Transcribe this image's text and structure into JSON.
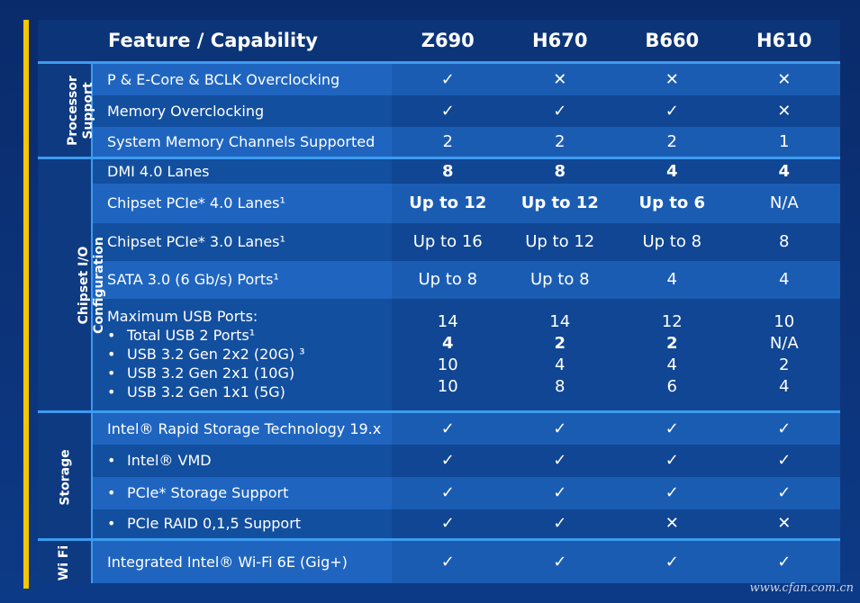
{
  "header": {
    "feature_label": "Feature / Capability",
    "chipsets": [
      "Z690",
      "H670",
      "B660",
      "H610"
    ]
  },
  "icons": {
    "check": "check-icon",
    "cross": "cross-icon"
  },
  "colors": {
    "accent_bar": "#f7c600",
    "divider": "#3d9bf0",
    "background": "#0b2e6f"
  },
  "categories": {
    "processor": "Processor Support",
    "chipset_io": "Chipset I/O Configuration",
    "storage": "Storage",
    "wifi": "Wi Fi"
  },
  "rows": {
    "r0": {
      "label": "P & E-Core & BCLK Overclocking",
      "values": [
        "✓",
        "✕",
        "✕",
        "✕"
      ]
    },
    "r1": {
      "label": "Memory Overclocking",
      "values": [
        "✓",
        "✓",
        "✓",
        "✕"
      ]
    },
    "r2": {
      "label": "System Memory Channels Supported",
      "values": [
        "2",
        "2",
        "2",
        "1"
      ]
    },
    "r3": {
      "label": "DMI 4.0 Lanes",
      "values": [
        "8",
        "8",
        "4",
        "4"
      ]
    },
    "r4": {
      "label": "Chipset PCIe* 4.0 Lanes¹",
      "values": [
        "Up to 12",
        "Up to 12",
        "Up to 6",
        "N/A"
      ]
    },
    "r5": {
      "label": "Chipset PCIe* 3.0 Lanes¹",
      "values": [
        "Up to 16",
        "Up to 12",
        "Up to 8",
        "8"
      ]
    },
    "r6": {
      "label": "SATA 3.0 (6 Gb/s) Ports¹",
      "values": [
        "Up to 8",
        "Up to 8",
        "4",
        "4"
      ]
    },
    "r7": {
      "label": "Maximum USB Ports:",
      "sub": [
        "Total USB 2 Ports¹",
        "USB 3.2 Gen 2x2 (20G) ³",
        "USB 3.2 Gen 2x1 (10G)",
        "USB 3.2 Gen 1x1 (5G)"
      ],
      "values": [
        [
          "14",
          "4",
          "10",
          "10"
        ],
        [
          "14",
          "2",
          "4",
          "8"
        ],
        [
          "12",
          "2",
          "4",
          "6"
        ],
        [
          "10",
          "N/A",
          "2",
          "4"
        ]
      ]
    },
    "r8": {
      "label": "Intel® Rapid Storage Technology 19.x",
      "values": [
        "✓",
        "✓",
        "✓",
        "✓"
      ]
    },
    "r9": {
      "label": "Intel® VMD",
      "values": [
        "✓",
        "✓",
        "✓",
        "✓"
      ]
    },
    "r10": {
      "label": "PCIe* Storage Support",
      "values": [
        "✓",
        "✓",
        "✓",
        "✓"
      ]
    },
    "r11": {
      "label": "PCIe RAID 0,1,5 Support",
      "values": [
        "✓",
        "✓",
        "✕",
        "✕"
      ]
    },
    "r12": {
      "label": "Integrated Intel® Wi-Fi 6E (Gig+)",
      "values": [
        "✓",
        "✓",
        "✓",
        "✓"
      ]
    }
  },
  "watermark": "www.cfan.com.cn"
}
